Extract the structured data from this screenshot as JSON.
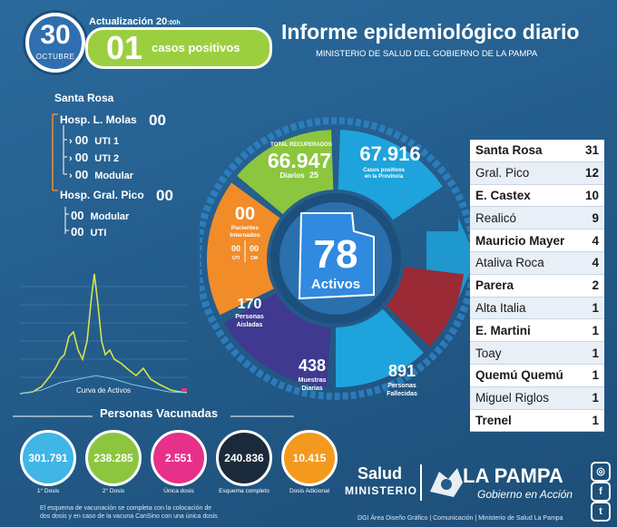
{
  "header": {
    "date_day": "30",
    "date_month": "OCTUBRE",
    "update_label": "Actualización 20",
    "update_time": ":00h",
    "new_cases": "01",
    "new_cases_label": "casos positivos",
    "title": "Informe epidemiológico diario",
    "subtitle": "MINISTERIO DE SALUD DEL GOBIERNO DE LA PAMPA"
  },
  "hospitals": {
    "region": "Santa Rosa",
    "molas": {
      "label": "Hosp. L. Molas",
      "value": "00"
    },
    "uti1": {
      "value": "00",
      "label": "UTI 1"
    },
    "uti2": {
      "value": "00",
      "label": "UTI 2"
    },
    "modular": {
      "value": "00",
      "label": "Modular"
    },
    "pico": {
      "label": "Hosp. Gral. Pico",
      "value": "00"
    },
    "pico_modular": {
      "value": "00",
      "label": "Modular"
    },
    "pico_uti": {
      "value": "00",
      "label": "UTI"
    }
  },
  "ring": {
    "active_value": "78",
    "active_label": "Activos",
    "recovered_title": "TOTAL RECUPERADOS",
    "recovered_value": "66.947",
    "recovered_daily_label": "Diarios",
    "recovered_daily_value": "25",
    "positives_value": "67.916",
    "positives_label_1": "Casos positivos",
    "positives_label_2": "en la Provincia",
    "hospitalized_value": "00",
    "hospitalized_label_1": "Pacientes",
    "hospitalized_label_2": "Internados",
    "uti_value": "00",
    "uti_label": "UTI",
    "cm_value": "00",
    "cm_label": "CM",
    "isolated_value": "170",
    "isolated_label_1": "Personas",
    "isolated_label_2": "Aisladas",
    "samples_value": "438",
    "samples_label_1": "Muestras",
    "samples_label_2": "Diarias",
    "deceased_value": "891",
    "deceased_label_1": "Personas",
    "deceased_label_2": "Fallecidas"
  },
  "cities": [
    {
      "name": "Santa Rosa",
      "value": "31"
    },
    {
      "name": "Gral. Pico",
      "value": "12"
    },
    {
      "name": "E. Castex",
      "value": "10"
    },
    {
      "name": "Realicó",
      "value": "9"
    },
    {
      "name": "Mauricio Mayer",
      "value": "4"
    },
    {
      "name": "Ataliva Roca",
      "value": "4"
    },
    {
      "name": "Parera",
      "value": "2"
    },
    {
      "name": "Alta Italia",
      "value": "1"
    },
    {
      "name": "E. Martini",
      "value": "1"
    },
    {
      "name": "Toay",
      "value": "1"
    },
    {
      "name": "Quemú Quemú",
      "value": "1"
    },
    {
      "name": "Miguel Riglos",
      "value": "1"
    },
    {
      "name": "Trenel",
      "value": "1"
    }
  ],
  "chart": {
    "caption": "Curva de Activos"
  },
  "vaccines": {
    "title": "Personas Vacunadas",
    "items": [
      {
        "value": "301.791",
        "label": "1° Dosis",
        "color": "#3fb6e6"
      },
      {
        "value": "238.285",
        "label": "2° Dosis",
        "color": "#8cc63f"
      },
      {
        "value": "2.551",
        "label": "Única dosis",
        "color": "#e6308a"
      },
      {
        "value": "240.836",
        "label": "Esquema completo",
        "color": "#1b2a3a"
      },
      {
        "value": "10.415",
        "label": "Dosis Adicional",
        "color": "#f39a1e"
      }
    ],
    "note_1": "El esquema de vacunación se completa con la colocación de",
    "note_2": "dos dosis y en caso de la vacuna CanSino con una única dosis"
  },
  "footer": {
    "salud": "Salud",
    "ministerio": "MINISTERIO",
    "la_pampa": "LA PAMPA",
    "gobierno": "Gobierno en Acción",
    "credits": "DGI Área Diseño Gráfico  |  Comunicación  |  Ministerio de Salud La Pampa"
  },
  "colors": {
    "background": "#245d8c",
    "recovered": "#8cc63f",
    "positives": "#1ea3dc",
    "hospitalized": "#f28c28",
    "isolated": "#3f3a8f",
    "samples": "#1ea3dc",
    "deceased": "#9a2a35",
    "center": "#2a7fd0"
  }
}
